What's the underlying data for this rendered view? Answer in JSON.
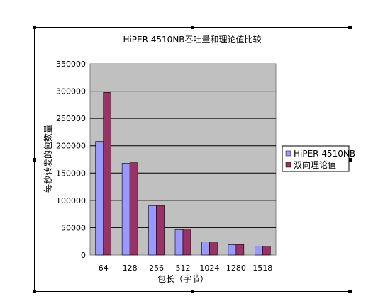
{
  "chart_data": {
    "type": "bar",
    "title": "HiPER 4510NB吞吐量和理论值比较",
    "xlabel": "包长（字节）",
    "ylabel": "每秒转发的包数量",
    "categories": [
      "64",
      "128",
      "256",
      "512",
      "1024",
      "1280",
      "1518"
    ],
    "series": [
      {
        "name": "HiPER 4510NB",
        "values": [
          208000,
          168000,
          90000,
          46000,
          24000,
          19000,
          16000
        ],
        "color": "#9999ff"
      },
      {
        "name": "双向理论值",
        "values": [
          297619,
          168919,
          90580,
          46992,
          23946,
          19230,
          16254
        ],
        "color": "#993366"
      }
    ],
    "ylim": [
      0,
      350000
    ],
    "yticks": [
      0,
      50000,
      100000,
      150000,
      200000,
      250000,
      300000,
      350000
    ],
    "grid": true,
    "plot_background": "#c0c0c0",
    "legend_position": "right"
  }
}
